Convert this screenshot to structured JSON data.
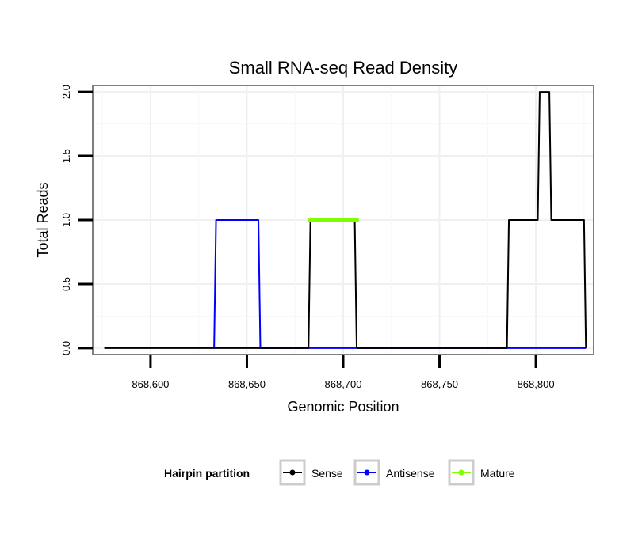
{
  "chart_data": {
    "type": "line",
    "title": "Small RNA-seq Read Density",
    "xlabel": "Genomic Position",
    "ylabel": "Total Reads",
    "xlim": [
      868570,
      868830
    ],
    "ylim": [
      -0.05,
      2.05
    ],
    "xticks": [
      868600,
      868650,
      868700,
      868750,
      868800
    ],
    "xtick_labels": [
      "868,600",
      "868,650",
      "868,700",
      "868,750",
      "868,800"
    ],
    "yticks": [
      0,
      0.5,
      1,
      1.5,
      2
    ],
    "ytick_labels": [
      "0.0",
      "0.5",
      "1.0",
      "1.5",
      "2.0"
    ],
    "grid": true,
    "legend": {
      "title": "Hairpin partition",
      "position": "bottom",
      "entries": [
        {
          "name": "Sense",
          "color": "#000000"
        },
        {
          "name": "Antisense",
          "color": "#0000ff"
        },
        {
          "name": "Mature",
          "color": "#7fff00"
        }
      ]
    },
    "series": [
      {
        "name": "Sense",
        "color": "#000000",
        "x": [
          868576,
          868682,
          868683,
          868706,
          868707,
          868785,
          868786,
          868801,
          868802,
          868807,
          868808,
          868825,
          868826
        ],
        "y": [
          0,
          0,
          1,
          1,
          0,
          0,
          1,
          1,
          2,
          2,
          1,
          1,
          0
        ]
      },
      {
        "name": "Antisense",
        "color": "#0000ff",
        "x": [
          868633,
          868634,
          868656,
          868657,
          868682,
          868706,
          868786,
          868826
        ],
        "y": [
          0,
          1,
          1,
          0,
          0,
          0,
          0,
          0
        ]
      },
      {
        "name": "Mature",
        "color": "#7fff00",
        "x": [
          868683,
          868707
        ],
        "y": [
          1,
          1
        ]
      }
    ]
  }
}
